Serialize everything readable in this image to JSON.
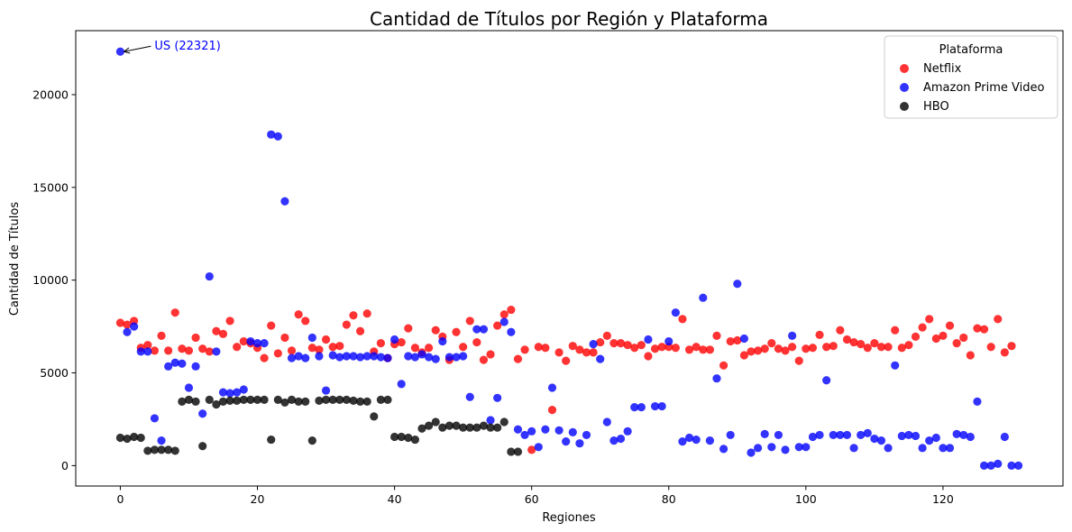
{
  "chart_data": {
    "type": "scatter",
    "title": "Cantidad de Títulos por Región y Plataforma",
    "xlabel": "Regiones",
    "ylabel": "Cantidad de Títulos",
    "xlim": [
      -6.5,
      137.5
    ],
    "ylim": [
      -1100,
      23450
    ],
    "xticks": [
      0,
      20,
      40,
      60,
      80,
      100,
      120
    ],
    "yticks": [
      0,
      5000,
      10000,
      15000,
      20000
    ],
    "grid": false,
    "legend": {
      "title": "Plataforma",
      "position": "top-right"
    },
    "annotation": {
      "text": "US (22321)",
      "x": 0,
      "y": 22321,
      "color": "#0000ff"
    },
    "series": [
      {
        "name": "Netflix",
        "color": "#ff0000",
        "values": [
          7700,
          7600,
          7800,
          6350,
          6500,
          6200,
          7000,
          6200,
          8250,
          6300,
          6200,
          6900,
          6300,
          6150,
          7250,
          7100,
          7800,
          6400,
          6700,
          6600,
          6350,
          5800,
          7550,
          6050,
          6900,
          6200,
          8150,
          7800,
          6350,
          6250,
          6800,
          6400,
          6450,
          7600,
          8100,
          7250,
          8200,
          6150,
          6600,
          5800,
          6550,
          6650,
          7400,
          6350,
          6100,
          6350,
          7300,
          6950,
          5700,
          7200,
          6400,
          7800,
          6650,
          5700,
          6000,
          7550,
          8150,
          8400,
          5750,
          6250,
          850,
          6400,
          6350,
          3000,
          6100,
          5650,
          6450,
          6250,
          6100,
          6100,
          6650,
          7000,
          6600,
          6600,
          6500,
          6350,
          6500,
          5900,
          6300,
          6400,
          6400,
          6350,
          7900,
          6250,
          6400,
          6250,
          6250,
          7000,
          5400,
          6700,
          6750,
          5950,
          6150,
          6200,
          6300,
          6600,
          6300,
          6200,
          6400,
          5650,
          6300,
          6350,
          7050,
          6400,
          6450,
          7300,
          6800,
          6650,
          6550,
          6350,
          6600,
          6400,
          6400,
          7300,
          6350,
          6500,
          6950,
          7450,
          7900,
          6850,
          7000,
          7550,
          6600,
          6900,
          5950,
          7400,
          7350,
          6400,
          7900,
          6100,
          6450
        ]
      },
      {
        "name": "Amazon Prime Video",
        "color": "#0000ff",
        "values": [
          22321,
          7200,
          7500,
          6150,
          6150,
          2550,
          1350,
          5350,
          5550,
          5500,
          4200,
          5350,
          2800,
          10200,
          6150,
          3950,
          3900,
          3950,
          4100,
          6700,
          6600,
          6600,
          17850,
          17750,
          14250,
          5800,
          5900,
          5800,
          6900,
          5900,
          4050,
          5950,
          5850,
          5900,
          5900,
          5850,
          5900,
          5900,
          5850,
          5800,
          6800,
          4400,
          5900,
          5850,
          6000,
          5850,
          5750,
          6700,
          5850,
          5850,
          5900,
          3700,
          7350,
          7350,
          2450,
          3650,
          7750,
          7200,
          1950,
          1650,
          1850,
          1000,
          1950,
          4200,
          1900,
          1300,
          1800,
          1200,
          1650,
          6550,
          5750,
          2350,
          1350,
          1450,
          1850,
          3150,
          3150,
          6800,
          3200,
          3200,
          6700,
          8250,
          1300,
          1500,
          1400,
          9050,
          1350,
          4700,
          900,
          1650,
          9800,
          6850,
          700,
          950,
          1700,
          1000,
          1650,
          850,
          7000,
          1000,
          1000,
          1550,
          1650,
          4600,
          1650,
          1650,
          1650,
          950,
          1650,
          1750,
          1450,
          1350,
          950,
          5400,
          1600,
          1650,
          1600,
          950,
          1350,
          1500,
          950,
          950,
          1700,
          1650,
          1550,
          3450,
          0,
          0,
          100,
          1550,
          0,
          0
        ]
      },
      {
        "name": "HBO",
        "color": "#000000",
        "values": [
          1500,
          1450,
          1550,
          1500,
          800,
          850,
          850,
          850,
          800,
          3450,
          3550,
          3450,
          1050,
          3550,
          3300,
          3450,
          3500,
          3500,
          3550,
          3550,
          3550,
          3550,
          1400,
          3550,
          3400,
          3550,
          3450,
          3450,
          1350,
          3500,
          3550,
          3550,
          3550,
          3550,
          3500,
          3450,
          3450,
          2650,
          3550,
          3550,
          1550,
          1550,
          1500,
          1400,
          2000,
          2150,
          2350,
          2050,
          2150,
          2150,
          2050,
          2050,
          2050,
          2150,
          2050,
          2050,
          2350,
          750,
          750
        ]
      }
    ]
  }
}
